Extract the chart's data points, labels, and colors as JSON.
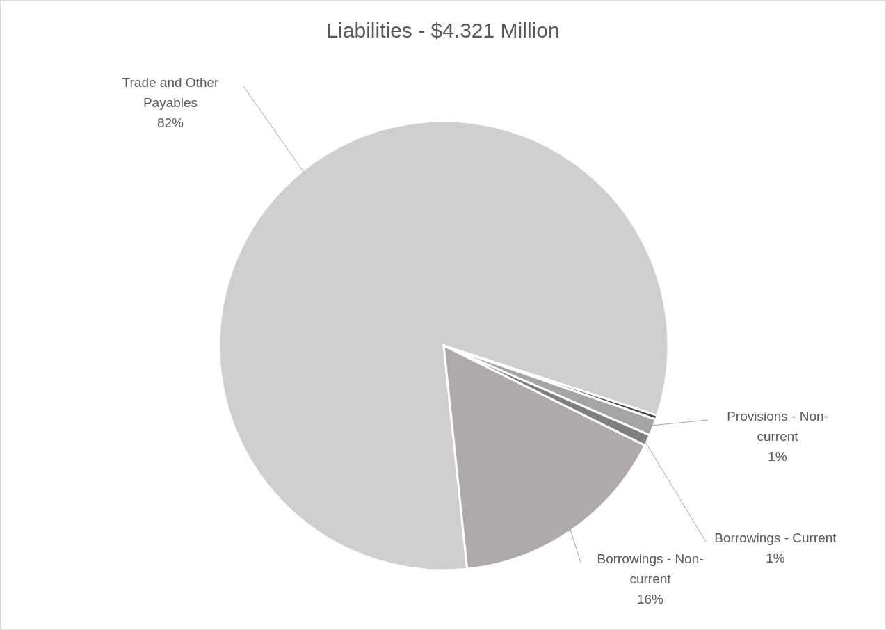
{
  "chart_data": {
    "type": "pie",
    "title": "Liabilities - $4.321 Million",
    "categories": [
      "Trade and Other Payables",
      null,
      "Provisions - Non-current",
      "Borrowings - Current",
      "Borrowings - Non-current"
    ],
    "values": [
      81.7,
      0.3,
      1.2,
      0.8,
      16
    ],
    "value_labels": [
      "82%",
      null,
      "1%",
      "1%",
      "16%"
    ],
    "colors": [
      "#d0cecf",
      "#404040",
      "#a5a5a5",
      "#7f7f7f",
      "#aeaaaa"
    ]
  }
}
